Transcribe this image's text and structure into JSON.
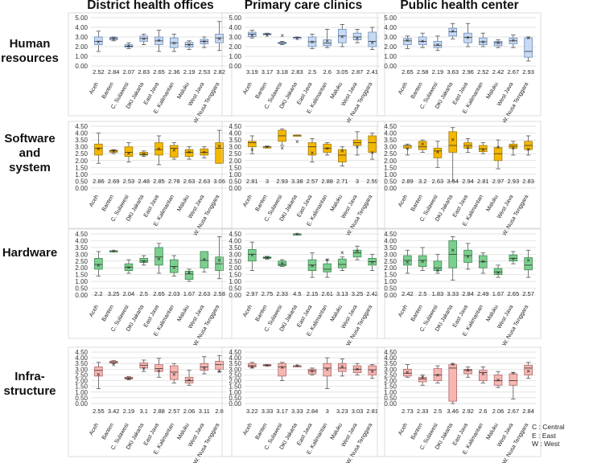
{
  "chart_data": {
    "type": "boxplot",
    "columns": [
      "District health offices",
      "Primary care clinics",
      "Public health center"
    ],
    "rows": [
      {
        "label": [
          "Human",
          "resources"
        ],
        "color": "#c8daf2",
        "stroke": "#6a8cbf"
      },
      {
        "label": [
          "Software",
          "and",
          "system"
        ],
        "color": "#f5b800",
        "stroke": "#a07a10"
      },
      {
        "label": [
          "Hardware"
        ],
        "color": "#7ccf8f",
        "stroke": "#3f8a52"
      },
      {
        "label": [
          "Infra-",
          "structure"
        ],
        "color": "#f6b7b3",
        "stroke": "#b06666"
      }
    ],
    "y_ticks": {
      "human_resources": [
        "0.00",
        "1.00",
        "2.00",
        "3.00",
        "4.00",
        "5.00"
      ],
      "other": [
        "0.00",
        "0.50",
        "1.00",
        "1.50",
        "2.00",
        "2.50",
        "3.00",
        "3.50",
        "4.00",
        "4.50"
      ]
    },
    "categories": [
      [
        "Aceh",
        "Banten",
        "C. Sulawesi",
        "DKI Jakarta",
        "East Java",
        "E. Kalimantan",
        "Maluku",
        "West Java",
        "W. Nusa Tenggara"
      ],
      [
        "Aceh",
        "Banten",
        "C. Sulawesi",
        "DKI Jakarta",
        "East Java",
        "E. Kalimantan",
        "Maluku",
        "West Java",
        "W. Nusa Tenggara"
      ],
      [
        "Aceh",
        "Banten",
        "C. Sulawesi",
        "DKI Jakarta",
        "East Java",
        "E. Kalimantan",
        "Maluku",
        "West Java",
        "W. Nusa Tenggara"
      ]
    ],
    "ylim": [
      [
        0,
        5
      ],
      [
        0,
        4.5
      ],
      [
        0,
        4.5
      ],
      [
        0,
        4.5
      ]
    ],
    "means": [
      [
        [
          "2.52",
          "2.84",
          "2.07",
          "2.83",
          "2.65",
          "2.36",
          "2.19",
          "2.53",
          "2.82"
        ],
        [
          "3.19",
          "3.17",
          "3.18",
          "2.83",
          "2.5",
          "2.6",
          "3.05",
          "2.87",
          "2.41"
        ],
        [
          "2.65",
          "2.58",
          "2.19",
          "3.63",
          "2.96",
          "2.52",
          "2.42",
          "2.67",
          "2.93"
        ]
      ],
      [
        [
          "2.86",
          "2.69",
          "2.53",
          "2.48",
          "2.85",
          "2.78",
          "2.63",
          "2.63",
          "3.06"
        ],
        [
          "2.81",
          "3",
          "2.93",
          "3.38",
          "2.57",
          "2.88",
          "2.71",
          "3",
          "2.59"
        ],
        [
          "2.89",
          "3.2",
          "2.63",
          "3.54",
          "2.94",
          "2.81",
          "2.97",
          "2.93",
          "2.83"
        ]
      ],
      [
        [
          "2.2",
          "3.25",
          "2.04",
          "2.5",
          "2.65",
          "2.03",
          "1.67",
          "2.63",
          "2.58"
        ],
        [
          "2.97",
          "2.75",
          "2.33",
          "4.5",
          "2.15",
          "2.61",
          "3.13",
          "3.25",
          "2.42"
        ],
        [
          "2.42",
          "2.5",
          "1.83",
          "3.33",
          "2.84",
          "2.49",
          "1.67",
          "2.65",
          "2.57"
        ]
      ],
      [
        [
          "2.55",
          "3.42",
          "2.19",
          "3.1",
          "2.88",
          "2.57",
          "2.06",
          "3.11",
          "2.8"
        ],
        [
          "3.22",
          "3.33",
          "3.17",
          "3.33",
          "2.84",
          "3",
          "3.23",
          "3.03",
          "2.81"
        ],
        [
          "2.73",
          "2.33",
          "2.5",
          "3.46",
          "2.92",
          "2.6",
          "2.06",
          "2.67",
          "2.84"
        ]
      ]
    ],
    "boxes": [
      [
        [
          [
            1.5,
            2.2,
            2.55,
            3.0,
            3.6
          ],
          [
            2.6,
            2.7,
            2.85,
            2.95,
            3.0
          ],
          [
            1.8,
            1.95,
            2.05,
            2.2,
            2.4
          ],
          [
            2.2,
            2.55,
            2.85,
            3.1,
            3.3
          ],
          [
            1.5,
            2.2,
            2.6,
            3.0,
            3.7
          ],
          [
            1.5,
            1.9,
            2.4,
            2.9,
            3.3
          ],
          [
            1.7,
            1.95,
            2.2,
            2.45,
            2.6
          ],
          [
            1.9,
            2.3,
            2.55,
            2.75,
            3.0
          ],
          [
            1.6,
            2.4,
            2.9,
            3.3,
            4.6
          ]
        ],
        [
          [
            2.9,
            3.05,
            3.3,
            3.5,
            3.7
          ],
          [
            3.25,
            3.3,
            3.3,
            3.35,
            3.4
          ],
          [
            2.2,
            2.3,
            2.4,
            2.45,
            2.55
          ],
          [
            2.85,
            2.95,
            2.95,
            2.95,
            3.0
          ],
          [
            1.8,
            2.0,
            2.5,
            3.0,
            3.3
          ],
          [
            1.9,
            2.1,
            2.35,
            2.7,
            3.8
          ],
          [
            2.0,
            2.4,
            3.1,
            3.8,
            4.3
          ],
          [
            2.4,
            2.7,
            3.0,
            3.4,
            3.8
          ],
          [
            1.7,
            2.0,
            2.55,
            3.5,
            4.0
          ]
        ],
        [
          [
            1.8,
            2.2,
            2.6,
            2.85,
            3.1
          ],
          [
            1.9,
            2.2,
            2.55,
            3.0,
            3.4
          ],
          [
            1.6,
            1.9,
            2.15,
            2.55,
            3.1
          ],
          [
            2.8,
            3.1,
            3.55,
            3.9,
            4.4
          ],
          [
            2.0,
            2.4,
            2.95,
            3.4,
            4.4
          ],
          [
            2.0,
            2.2,
            2.5,
            2.9,
            3.4
          ],
          [
            1.9,
            2.1,
            2.4,
            2.55,
            2.7
          ],
          [
            1.9,
            2.3,
            2.6,
            2.9,
            3.2
          ],
          [
            0.5,
            0.9,
            1.5,
            2.9,
            3.0
          ]
        ]
      ],
      [
        [
          [
            1.8,
            2.4,
            2.9,
            3.2,
            4.0
          ],
          [
            2.5,
            2.6,
            2.7,
            2.75,
            2.8
          ],
          [
            1.9,
            2.3,
            2.6,
            3.0,
            3.3
          ],
          [
            2.3,
            2.4,
            2.45,
            2.6,
            2.7
          ],
          [
            1.7,
            2.4,
            2.8,
            3.3,
            3.8
          ],
          [
            2.1,
            2.25,
            2.9,
            3.1,
            3.3
          ],
          [
            2.1,
            2.3,
            2.6,
            2.8,
            3.0
          ],
          [
            2.2,
            2.4,
            2.6,
            2.85,
            3.0
          ],
          [
            1.8,
            1.8,
            2.9,
            3.3,
            4.2
          ]
        ],
        [
          [
            2.5,
            3.0,
            3.3,
            3.4,
            3.8
          ],
          [
            2.95,
            3.0,
            3.0,
            3.0,
            3.05
          ],
          [
            3.1,
            3.4,
            3.8,
            4.2,
            4.3
          ],
          [
            3.85,
            3.85,
            3.85,
            3.85,
            3.85
          ],
          [
            1.9,
            2.4,
            3.0,
            3.3,
            3.6
          ],
          [
            2.4,
            2.6,
            2.9,
            3.2,
            3.3
          ],
          [
            1.6,
            1.9,
            2.4,
            2.8,
            3.0
          ],
          [
            2.4,
            3.1,
            3.3,
            3.5,
            4.1
          ],
          [
            2.1,
            2.6,
            3.3,
            3.8,
            4.0
          ]
        ],
        [
          [
            2.4,
            2.9,
            3.1,
            3.1,
            3.2
          ],
          [
            2.6,
            2.8,
            3.0,
            3.4,
            3.5
          ],
          [
            1.5,
            2.2,
            2.7,
            2.9,
            3.4
          ],
          [
            0.5,
            2.6,
            3.1,
            4.1,
            4.4
          ],
          [
            2.6,
            2.9,
            3.1,
            3.3,
            3.6
          ],
          [
            2.5,
            2.65,
            2.85,
            3.1,
            3.3
          ],
          [
            1.4,
            2.0,
            2.5,
            2.95,
            3.5
          ],
          [
            2.4,
            2.9,
            3.05,
            3.2,
            3.4
          ],
          [
            2.4,
            2.8,
            3.1,
            3.4,
            3.8
          ]
        ]
      ],
      [
        [
          [
            1.4,
            1.9,
            2.25,
            2.7,
            3.2
          ],
          [
            3.25,
            3.25,
            3.25,
            3.25,
            3.25
          ],
          [
            1.6,
            1.8,
            2.05,
            2.3,
            2.6
          ],
          [
            2.2,
            2.4,
            2.5,
            2.7,
            2.9
          ],
          [
            1.6,
            2.2,
            2.8,
            3.5,
            3.8
          ],
          [
            1.4,
            1.65,
            2.1,
            2.6,
            2.9
          ],
          [
            1.0,
            1.15,
            1.55,
            1.75,
            1.9
          ],
          [
            1.7,
            2.0,
            2.55,
            3.2,
            3.2
          ],
          [
            1.2,
            1.8,
            2.3,
            2.8,
            4.3
          ]
        ],
        [
          [
            1.8,
            2.5,
            3.0,
            3.35,
            3.9
          ],
          [
            2.65,
            2.7,
            2.75,
            2.8,
            2.85
          ],
          [
            2.1,
            2.15,
            2.25,
            2.5,
            2.6
          ],
          [
            4.5,
            4.5,
            4.5,
            4.5,
            4.5
          ],
          [
            1.3,
            1.8,
            2.2,
            2.6,
            3.1
          ],
          [
            1.3,
            1.7,
            1.9,
            2.3,
            2.6
          ],
          [
            1.8,
            2.0,
            2.25,
            2.65,
            2.8
          ],
          [
            2.6,
            2.8,
            3.1,
            3.3,
            3.6
          ],
          [
            1.8,
            2.2,
            2.45,
            2.7,
            3.0
          ]
        ],
        [
          [
            1.6,
            2.2,
            2.55,
            2.9,
            3.3
          ],
          [
            1.8,
            2.1,
            2.55,
            2.9,
            3.5
          ],
          [
            1.6,
            1.8,
            2.0,
            2.5,
            3.0
          ],
          [
            1.1,
            2.0,
            3.0,
            4.0,
            4.3
          ],
          [
            1.9,
            2.4,
            2.9,
            3.3,
            3.8
          ],
          [
            1.6,
            2.0,
            2.45,
            2.9,
            3.1
          ],
          [
            1.3,
            1.5,
            1.7,
            1.95,
            2.2
          ],
          [
            2.3,
            2.5,
            2.7,
            2.95,
            3.2
          ],
          [
            1.3,
            1.85,
            2.2,
            2.75,
            3.3
          ]
        ]
      ],
      [
        [
          [
            1.3,
            2.4,
            2.9,
            3.2,
            3.6
          ],
          [
            3.5,
            3.55,
            3.6,
            3.7,
            3.75
          ],
          [
            2.1,
            2.15,
            2.2,
            2.3,
            2.35
          ],
          [
            2.8,
            3.1,
            3.35,
            3.55,
            3.8
          ],
          [
            2.3,
            2.8,
            3.05,
            3.4,
            3.95
          ],
          [
            1.8,
            2.1,
            2.75,
            3.3,
            3.5
          ],
          [
            1.6,
            1.8,
            2.0,
            2.3,
            2.9
          ],
          [
            2.6,
            2.9,
            3.2,
            3.5,
            4.1
          ],
          [
            2.8,
            3.0,
            3.4,
            3.7,
            4.2
          ]
        ],
        [
          [
            3.1,
            3.2,
            3.3,
            3.5,
            3.6
          ],
          [
            3.3,
            3.3,
            3.35,
            3.4,
            3.4
          ],
          [
            2.0,
            2.4,
            3.2,
            3.5,
            3.6
          ],
          [
            3.3,
            3.3,
            3.3,
            3.3,
            3.3
          ],
          [
            2.5,
            2.6,
            2.85,
            3.0,
            3.1
          ],
          [
            1.3,
            2.4,
            3.1,
            3.5,
            4.0
          ],
          [
            2.4,
            2.8,
            3.1,
            3.5,
            3.9
          ],
          [
            2.5,
            2.7,
            3.0,
            3.3,
            3.5
          ],
          [
            2.2,
            2.5,
            2.95,
            3.3,
            3.4
          ]
        ],
        [
          [
            2.3,
            2.4,
            2.65,
            3.0,
            3.4
          ],
          [
            1.6,
            1.9,
            2.15,
            2.3,
            2.5
          ],
          [
            1.8,
            2.0,
            2.5,
            3.05,
            3.3
          ],
          [
            0.0,
            0.2,
            3.1,
            3.4,
            3.5
          ],
          [
            2.3,
            2.6,
            2.9,
            3.0,
            3.2
          ],
          [
            1.8,
            2.0,
            2.7,
            2.9,
            3.2
          ],
          [
            1.4,
            1.6,
            2.0,
            2.5,
            2.8
          ],
          [
            0.4,
            1.6,
            2.0,
            2.6,
            2.7
          ],
          [
            2.2,
            2.5,
            3.1,
            3.35,
            3.6
          ]
        ]
      ]
    ],
    "legend": [
      "C : Central",
      "E : East",
      "W : West"
    ]
  }
}
